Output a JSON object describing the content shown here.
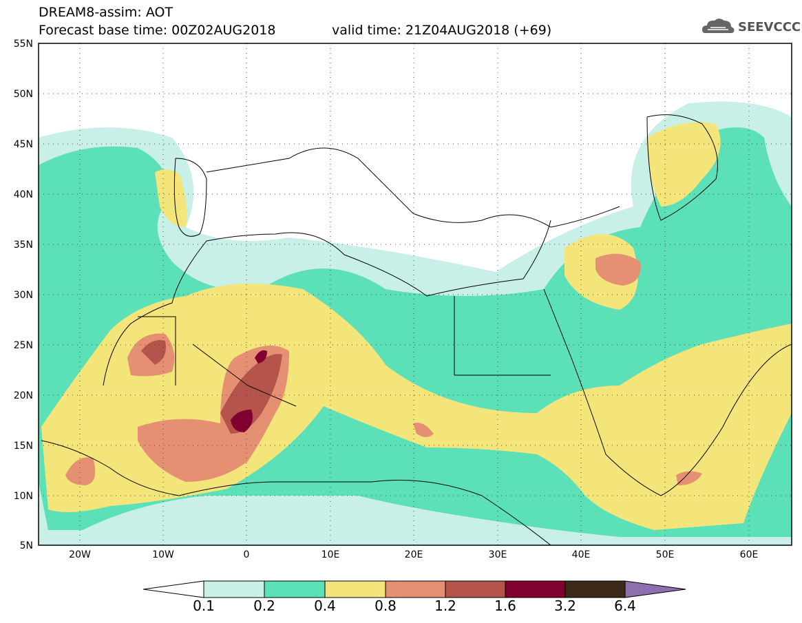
{
  "header": {
    "line1": "DREAM8-assim: AOT",
    "line2": "Forecast base time: 00Z02AUG2018",
    "line3": "valid time: 21Z04AUG2018 (+69)"
  },
  "logo": {
    "text": "SEEVCCC",
    "icon": "cloud-icon"
  },
  "map": {
    "lat_labels": [
      "55N",
      "50N",
      "45N",
      "40N",
      "35N",
      "30N",
      "25N",
      "20N",
      "15N",
      "10N",
      "5N"
    ],
    "lon_labels": [
      "20W",
      "10W",
      "0",
      "10E",
      "20E",
      "30E",
      "40E",
      "50E",
      "60E"
    ],
    "lat_range": [
      5,
      55
    ],
    "lon_range": [
      -25,
      65
    ],
    "grid": "dotted"
  },
  "colorbar": {
    "labels": [
      "0.1",
      "0.2",
      "0.4",
      "0.8",
      "1.2",
      "1.6",
      "3.2",
      "6.4"
    ],
    "colors": [
      "#ffffff",
      "#c8efe8",
      "#5ce0b8",
      "#f3e57a",
      "#e69073",
      "#b5544a",
      "#800030",
      "#3e2a1a",
      "#8c6fae"
    ]
  }
}
